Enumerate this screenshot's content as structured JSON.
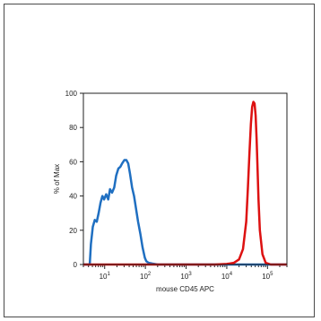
{
  "chart_data": {
    "type": "line",
    "xlabel": "mouse CD45 APC",
    "ylabel": "% of Max",
    "xscale": "log",
    "xlim": [
      3,
      300000
    ],
    "ylim": [
      0,
      100
    ],
    "y_ticks": [
      0,
      20,
      40,
      60,
      80,
      100
    ],
    "y_tick_labels": [
      "0",
      "20",
      "40",
      "60",
      "80",
      "100"
    ],
    "x_ticks": [
      {
        "value": 10,
        "base": "10",
        "exp": "1"
      },
      {
        "value": 100,
        "base": "10",
        "exp": "2"
      },
      {
        "value": 1000,
        "base": "10",
        "exp": "3"
      },
      {
        "value": 10000,
        "base": "10",
        "exp": "4"
      },
      {
        "value": 100000,
        "base": "10",
        "exp": "5"
      }
    ],
    "grid": false,
    "series": [
      {
        "color": "#1f6fc1",
        "x": [
          3,
          4.3,
          4.6,
          5.1,
          5.7,
          6.4,
          7.1,
          7.9,
          8.8,
          9.7,
          10.9,
          12.2,
          13.5,
          15.2,
          17.2,
          19.2,
          21.7,
          24.2,
          26.9,
          30.4,
          34.1,
          37.8,
          42.0,
          47.0,
          52.6,
          59.4,
          66.2,
          75.2,
          85.2,
          97.0,
          105,
          120,
          150,
          200,
          300,
          1000,
          10000,
          300000
        ],
        "y": [
          0,
          0,
          12,
          22,
          26,
          25,
          30,
          36,
          40,
          38,
          41,
          38,
          44,
          42,
          45,
          52,
          56,
          57,
          59,
          61,
          61,
          59,
          53,
          45,
          40,
          32,
          25,
          18,
          10,
          4,
          2,
          1,
          0.5,
          0,
          0,
          0,
          0,
          0
        ]
      },
      {
        "color": "#dd1111",
        "x": [
          3,
          100,
          5000,
          10000,
          15000,
          20000,
          25000,
          30000,
          33000,
          36000,
          39000,
          42000,
          45000,
          48000,
          51000,
          54000,
          57000,
          60000,
          65000,
          75000,
          90000,
          120000,
          300000
        ],
        "y": [
          0,
          0,
          0,
          0.3,
          1,
          3,
          9,
          25,
          45,
          65,
          82,
          92,
          95,
          94,
          87,
          73,
          55,
          38,
          20,
          6,
          1,
          0,
          0
        ]
      }
    ]
  }
}
